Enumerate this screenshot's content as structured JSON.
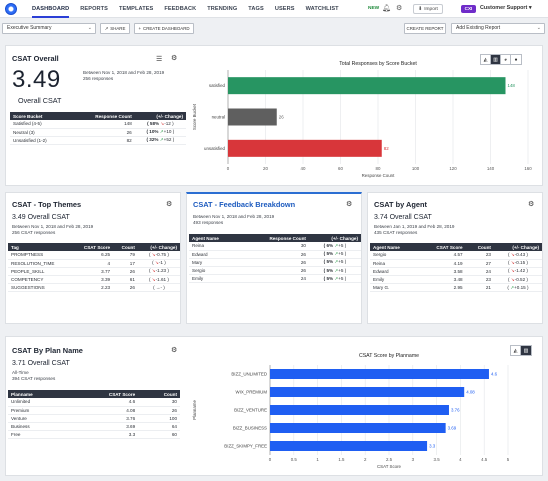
{
  "nav": {
    "tabs": [
      "DASHBOARD",
      "REPORTS",
      "TEMPLATES",
      "FEEDBACK",
      "TRENDING",
      "TAGS",
      "USERS",
      "WATCHLIST"
    ],
    "new_label": "NEW",
    "import_label": "Import",
    "org_badge": "CXI",
    "org_name": "Customer Support",
    "accent": "#2b3fd6",
    "badge_color": "#6f2cc9"
  },
  "toolbar": {
    "dashboard_select": "Executive Summary",
    "share_label": "SHARE",
    "create_dashboard_label": "CREATE DASHBOARD",
    "create_report_label": "CREATE REPORT",
    "add_existing_label": "Add Existing Report"
  },
  "csat_overall": {
    "title": "CSAT Overall",
    "score": "3.49",
    "score_label": "Overall CSAT",
    "date_range": "Between Nov 1, 2018 and Feb 28, 2019",
    "responses": "256 responses",
    "table": {
      "headers": [
        "Score Bucket",
        "Response Count",
        "(+/- Change)"
      ],
      "rows": [
        {
          "bucket": "Satisfied (4-5)",
          "count": "148",
          "pct": "58%",
          "dir": "dn",
          "change": "-12"
        },
        {
          "bucket": "Neutral (3)",
          "count": "26",
          "pct": "10%",
          "dir": "up",
          "change": "+10"
        },
        {
          "bucket": "Unsatisfied (1-2)",
          "count": "82",
          "pct": "32%",
          "dir": "up",
          "change": "+52"
        }
      ]
    },
    "chart_data": {
      "type": "bar",
      "orientation": "horizontal",
      "title": "Total Responses by Score Bucket",
      "xlabel": "Response Count",
      "ylabel": "Score Bucket",
      "categories": [
        "satisfied",
        "neutral",
        "unsatisfied"
      ],
      "values": [
        148,
        26,
        82
      ],
      "colors": [
        "#279562",
        "#5f5f5f",
        "#d8363a"
      ],
      "xlim": [
        0,
        160
      ],
      "xticks": [
        0,
        20,
        40,
        60,
        80,
        100,
        120,
        140,
        160
      ],
      "grid": true
    }
  },
  "top_themes": {
    "title": "CSAT - Top Themes",
    "csat_line": "3.49  Overall CSAT",
    "date_range": "Between Nov 1, 2018 and Feb 28, 2019",
    "responses": "256 CSAT responses",
    "headers": [
      "Tag",
      "CSAT Score",
      "Count",
      "(+/- Change)"
    ],
    "rows": [
      {
        "tag": "PROMPTNESS",
        "score": "6.25",
        "count": "79",
        "dir": "dn",
        "change": "-0.75"
      },
      {
        "tag": "RESOLUTION_TIME",
        "score": "4",
        "count": "17",
        "dir": "dn",
        "change": "-1"
      },
      {
        "tag": "PEOPLE_SKILL",
        "score": "3.77",
        "count": "26",
        "dir": "dn",
        "change": "-1.23"
      },
      {
        "tag": "COMPETENCY",
        "score": "3.39",
        "count": "61",
        "dir": "dn",
        "change": "-1.61"
      },
      {
        "tag": "SUGGESTIONS",
        "score": "2.23",
        "count": "26",
        "dir": "flat",
        "change": "-"
      }
    ]
  },
  "feedback_breakdown": {
    "title": "CSAT - Feedback Breakdown",
    "date_range": "Between Nov 1, 2018 and Feb 28, 2019",
    "responses": "493 responses",
    "headers": [
      "Agent Name",
      "Response Count",
      "(+/- Change)"
    ],
    "rows": [
      {
        "agent": "Reina",
        "count": "30",
        "pct": "6%",
        "dir": "up",
        "change": "+5"
      },
      {
        "agent": "Edward",
        "count": "26",
        "pct": "5%",
        "dir": "up",
        "change": "+5"
      },
      {
        "agent": "Mary",
        "count": "26",
        "pct": "5%",
        "dir": "up",
        "change": "+5"
      },
      {
        "agent": "Sergio",
        "count": "26",
        "pct": "5%",
        "dir": "up",
        "change": "+5"
      },
      {
        "agent": "Emily",
        "count": "24",
        "pct": "5%",
        "dir": "up",
        "change": "+5"
      }
    ]
  },
  "by_agent": {
    "title": "CSAT by Agent",
    "csat_line": "3.74  Overall CSAT",
    "date_range": "Between Jan 1, 2019 and Feb 28, 2019",
    "responses": "435 CSAT responses",
    "headers": [
      "Agent Name",
      "CSAT Score",
      "Count",
      "(+/- Change)"
    ],
    "rows": [
      {
        "agent": "Sergio",
        "score": "4.57",
        "count": "23",
        "dir": "dn",
        "change": "-0.43"
      },
      {
        "agent": "Reina",
        "score": "4.19",
        "count": "27",
        "dir": "dn",
        "change": "-0.15"
      },
      {
        "agent": "Edward",
        "score": "3.58",
        "count": "24",
        "dir": "dn",
        "change": "-1.42"
      },
      {
        "agent": "Emily",
        "score": "3.48",
        "count": "23",
        "dir": "dn",
        "change": "-0.52"
      },
      {
        "agent": "Mary G.",
        "score": "2.95",
        "count": "21",
        "dir": "up",
        "change": "+0.15"
      }
    ]
  },
  "by_plan": {
    "title": "CSAT By Plan Name",
    "csat_line": "3.71  Overall CSAT",
    "period": "All-Time",
    "responses": "394 CSAT responses",
    "headers": [
      "Planname",
      "CSAT Score",
      "Count"
    ],
    "rows": [
      {
        "plan": "Unlimited",
        "score": "4.6",
        "count": "30"
      },
      {
        "plan": "Premium",
        "score": "4.08",
        "count": "26"
      },
      {
        "plan": "Venture",
        "score": "3.76",
        "count": "100"
      },
      {
        "plan": "Business",
        "score": "3.69",
        "count": "64"
      },
      {
        "plan": "Free",
        "score": "3.3",
        "count": "60"
      }
    ],
    "chart_data": {
      "type": "bar",
      "orientation": "horizontal",
      "title": "CSAT Score by Planname",
      "xlabel": "CSAT Score",
      "ylabel": "Planname",
      "categories": [
        "BIZZ_UNLIMITED",
        "WIX_PREMIUM",
        "BIZZ_VENTURE",
        "BIZZ_BUSINESS",
        "BIZZ_SKIMPY_FREE"
      ],
      "values": [
        4.6,
        4.08,
        3.76,
        3.69,
        3.3
      ],
      "colors": [
        "#1f5ef2"
      ],
      "xlim": [
        0,
        5
      ],
      "xticks": [
        0,
        0.5,
        1,
        1.5,
        2,
        2.5,
        3,
        3.5,
        4,
        4.5,
        5
      ],
      "grid": true
    }
  }
}
